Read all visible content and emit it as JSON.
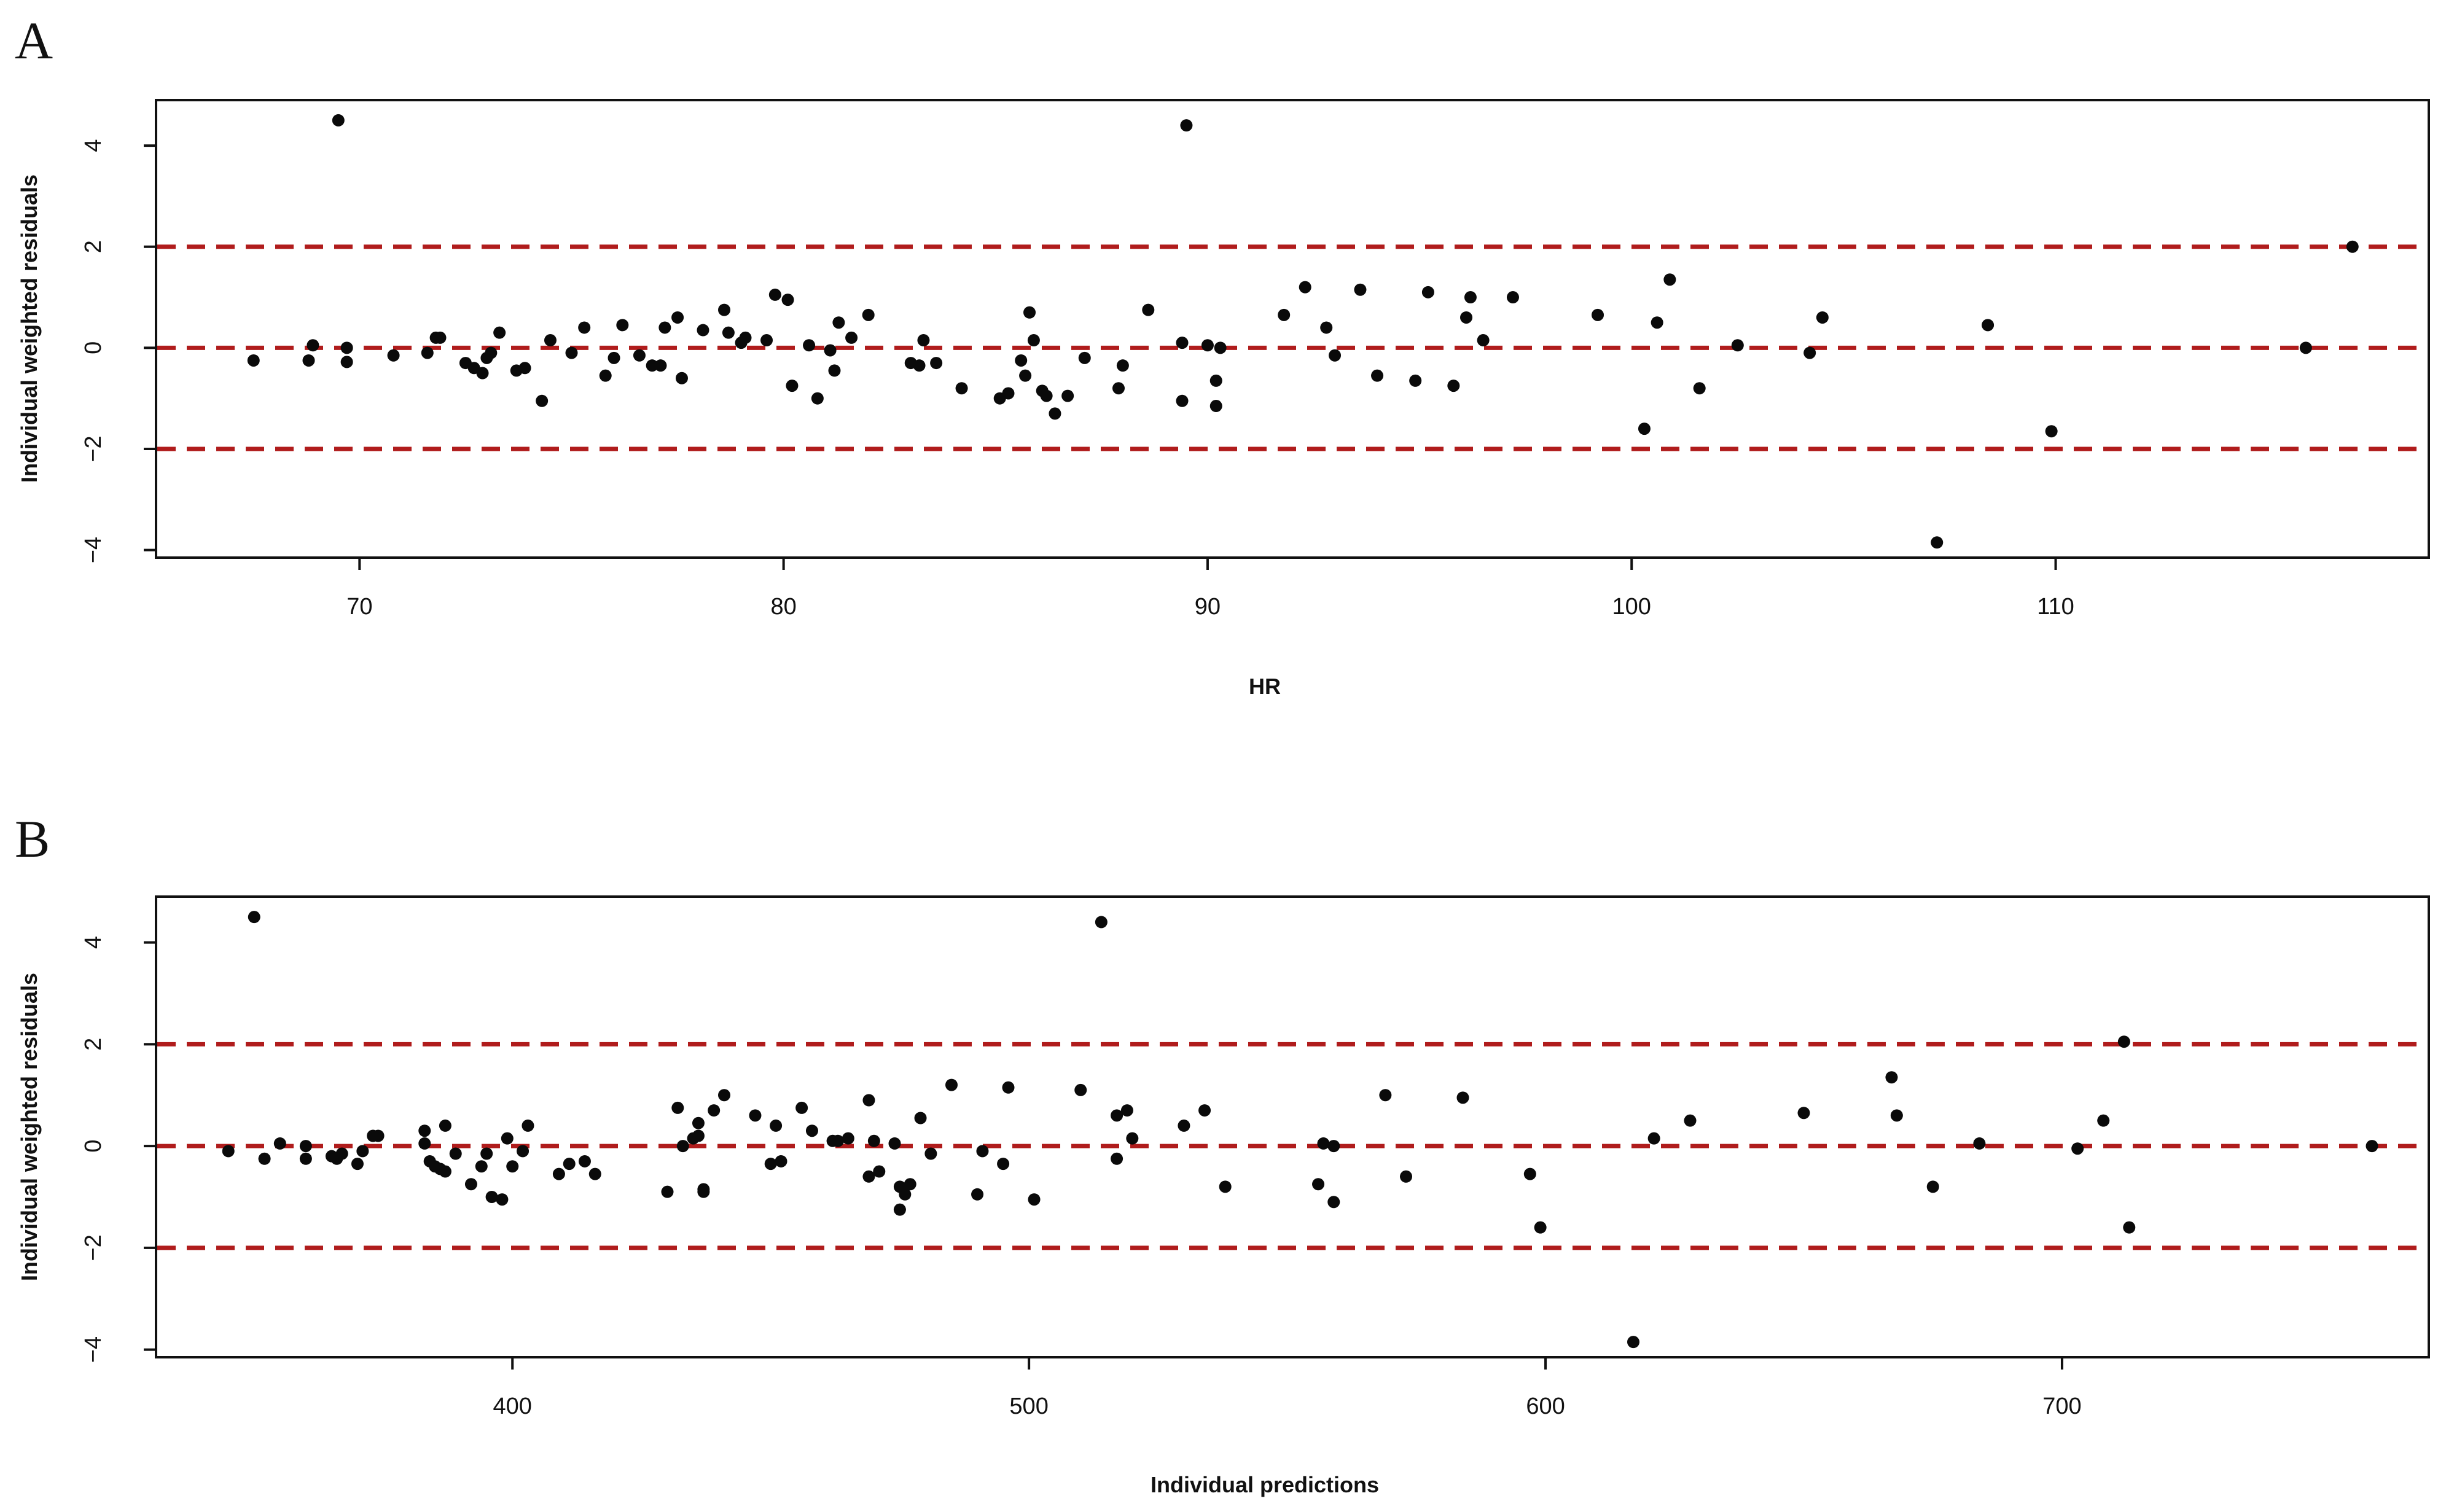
{
  "panels": [
    {
      "letter": "A",
      "xlabel": "HR",
      "ylabel": "Individual weighted residuals"
    },
    {
      "letter": "B",
      "xlabel": "Individual predictions",
      "ylabel": "Individual weighted residuals"
    }
  ],
  "colors": {
    "points": "#0a0a0a",
    "reference_lines": "#b01c1c",
    "axes": "#111111"
  },
  "chart_data": [
    {
      "type": "scatter",
      "title": "",
      "panel_label": "A",
      "xlabel": "HR",
      "ylabel": "Individual weighted residuals",
      "xlim": [
        65.2,
        118.8
      ],
      "ylim": [
        -4.15,
        4.9
      ],
      "xticks": [
        70,
        80,
        90,
        100,
        110
      ],
      "yticks": [
        -4,
        -2,
        0,
        2,
        4
      ],
      "xtick_labels": [
        "70",
        "80",
        "90",
        "100",
        "110"
      ],
      "ytick_labels": [
        "−4",
        "−2",
        "0",
        "2",
        "4"
      ],
      "reference_lines_y": [
        -2,
        0,
        2
      ],
      "reference_line_style": "dashed red",
      "grid": false,
      "points": [
        [
          67.5,
          -0.25
        ],
        [
          68.8,
          -0.25
        ],
        [
          68.9,
          0.05
        ],
        [
          69.5,
          4.5
        ],
        [
          69.7,
          0.0
        ],
        [
          69.7,
          -0.28
        ],
        [
          70.8,
          -0.15
        ],
        [
          71.6,
          -0.1
        ],
        [
          71.8,
          0.2
        ],
        [
          71.9,
          0.2
        ],
        [
          72.5,
          -0.3
        ],
        [
          72.7,
          -0.4
        ],
        [
          72.9,
          -0.5
        ],
        [
          73.0,
          -0.2
        ],
        [
          73.1,
          -0.1
        ],
        [
          73.3,
          0.3
        ],
        [
          73.7,
          -0.45
        ],
        [
          73.9,
          -0.4
        ],
        [
          74.3,
          -1.05
        ],
        [
          74.5,
          0.15
        ],
        [
          75.0,
          -0.1
        ],
        [
          75.3,
          0.4
        ],
        [
          75.8,
          -0.55
        ],
        [
          76.0,
          -0.2
        ],
        [
          76.2,
          0.45
        ],
        [
          76.6,
          -0.15
        ],
        [
          76.9,
          -0.35
        ],
        [
          77.1,
          -0.35
        ],
        [
          77.2,
          0.4
        ],
        [
          77.5,
          0.6
        ],
        [
          77.6,
          -0.6
        ],
        [
          78.1,
          0.35
        ],
        [
          78.6,
          0.75
        ],
        [
          78.7,
          0.3
        ],
        [
          79.0,
          0.1
        ],
        [
          79.1,
          0.2
        ],
        [
          79.6,
          0.15
        ],
        [
          79.8,
          1.05
        ],
        [
          80.1,
          0.95
        ],
        [
          80.2,
          -0.75
        ],
        [
          80.6,
          0.05
        ],
        [
          80.8,
          -1.0
        ],
        [
          81.1,
          -0.05
        ],
        [
          81.2,
          -0.45
        ],
        [
          81.3,
          0.5
        ],
        [
          81.6,
          0.2
        ],
        [
          82.0,
          0.65
        ],
        [
          83.0,
          -0.3
        ],
        [
          83.2,
          -0.35
        ],
        [
          83.3,
          0.15
        ],
        [
          83.6,
          -0.3
        ],
        [
          84.2,
          -0.8
        ],
        [
          85.1,
          -1.0
        ],
        [
          85.3,
          -0.9
        ],
        [
          85.6,
          -0.25
        ],
        [
          85.7,
          -0.55
        ],
        [
          85.8,
          0.7
        ],
        [
          85.9,
          0.15
        ],
        [
          86.1,
          -0.85
        ],
        [
          86.2,
          -0.95
        ],
        [
          86.4,
          -1.3
        ],
        [
          86.7,
          -0.95
        ],
        [
          87.1,
          -0.2
        ],
        [
          87.9,
          -0.8
        ],
        [
          88.0,
          -0.35
        ],
        [
          88.6,
          0.75
        ],
        [
          89.4,
          -1.05
        ],
        [
          89.4,
          0.1
        ],
        [
          89.5,
          4.4
        ],
        [
          90.0,
          0.05
        ],
        [
          90.2,
          -0.65
        ],
        [
          90.2,
          -1.15
        ],
        [
          90.3,
          0.0
        ],
        [
          91.8,
          0.65
        ],
        [
          92.3,
          1.2
        ],
        [
          92.8,
          0.4
        ],
        [
          93.0,
          -0.15
        ],
        [
          93.6,
          1.15
        ],
        [
          94.0,
          -0.55
        ],
        [
          94.9,
          -0.65
        ],
        [
          95.2,
          1.1
        ],
        [
          95.8,
          -0.75
        ],
        [
          96.1,
          0.6
        ],
        [
          96.2,
          1.0
        ],
        [
          96.5,
          0.15
        ],
        [
          97.2,
          1.0
        ],
        [
          99.2,
          0.65
        ],
        [
          100.3,
          -1.6
        ],
        [
          100.6,
          0.5
        ],
        [
          100.9,
          1.35
        ],
        [
          101.6,
          -0.8
        ],
        [
          102.5,
          0.05
        ],
        [
          104.2,
          -0.1
        ],
        [
          104.5,
          0.6
        ],
        [
          107.2,
          -3.85
        ],
        [
          108.4,
          0.45
        ],
        [
          109.9,
          -1.65
        ],
        [
          115.9,
          0.0
        ],
        [
          117.0,
          2.0
        ]
      ]
    },
    {
      "type": "scatter",
      "title": "",
      "panel_label": "B",
      "xlabel": "Individual predictions",
      "ylabel": "Individual weighted residuals",
      "xlim": [
        331,
        771
      ],
      "ylim": [
        -4.15,
        4.9
      ],
      "xticks": [
        400,
        500,
        600,
        700
      ],
      "yticks": [
        -4,
        -2,
        0,
        2,
        4
      ],
      "xtick_labels": [
        "400",
        "500",
        "600",
        "700"
      ],
      "ytick_labels": [
        "−4",
        "−2",
        "0",
        "2",
        "4"
      ],
      "reference_lines_y": [
        -2,
        0,
        2
      ],
      "reference_line_style": "dashed red",
      "grid": false,
      "points": [
        [
          345,
          -0.1
        ],
        [
          350,
          4.5
        ],
        [
          352,
          -0.25
        ],
        [
          355,
          0.05
        ],
        [
          360,
          0.0
        ],
        [
          360,
          -0.25
        ],
        [
          365,
          -0.2
        ],
        [
          366,
          -0.25
        ],
        [
          367,
          -0.15
        ],
        [
          370,
          -0.35
        ],
        [
          371,
          -0.1
        ],
        [
          373,
          0.2
        ],
        [
          374,
          0.2
        ],
        [
          383,
          0.3
        ],
        [
          383,
          0.05
        ],
        [
          384,
          -0.3
        ],
        [
          385,
          -0.4
        ],
        [
          386,
          -0.45
        ],
        [
          387,
          0.4
        ],
        [
          387,
          -0.5
        ],
        [
          389,
          -0.15
        ],
        [
          392,
          -0.75
        ],
        [
          394,
          -0.4
        ],
        [
          395,
          -0.15
        ],
        [
          396,
          -1.0
        ],
        [
          398,
          -1.05
        ],
        [
          399,
          0.15
        ],
        [
          400,
          -0.4
        ],
        [
          402,
          -0.1
        ],
        [
          403,
          0.4
        ],
        [
          409,
          -0.55
        ],
        [
          411,
          -0.35
        ],
        [
          414,
          -0.3
        ],
        [
          416,
          -0.55
        ],
        [
          430,
          -0.9
        ],
        [
          432,
          0.75
        ],
        [
          433,
          0.0
        ],
        [
          435,
          0.15
        ],
        [
          436,
          0.45
        ],
        [
          436,
          0.2
        ],
        [
          437,
          -0.85
        ],
        [
          437,
          -0.9
        ],
        [
          439,
          0.7
        ],
        [
          441,
          1.0
        ],
        [
          447,
          0.6
        ],
        [
          450,
          -0.35
        ],
        [
          451,
          0.4
        ],
        [
          452,
          -0.3
        ],
        [
          456,
          0.75
        ],
        [
          458,
          0.3
        ],
        [
          462,
          0.1
        ],
        [
          463,
          0.1
        ],
        [
          465,
          0.15
        ],
        [
          469,
          -0.6
        ],
        [
          469,
          0.9
        ],
        [
          470,
          0.1
        ],
        [
          471,
          -0.5
        ],
        [
          474,
          0.05
        ],
        [
          475,
          -0.8
        ],
        [
          475,
          -1.25
        ],
        [
          476,
          -0.95
        ],
        [
          477,
          -0.75
        ],
        [
          479,
          0.55
        ],
        [
          481,
          -0.15
        ],
        [
          485,
          1.2
        ],
        [
          490,
          -0.95
        ],
        [
          491,
          -0.1
        ],
        [
          495,
          -0.35
        ],
        [
          496,
          1.15
        ],
        [
          501,
          -1.05
        ],
        [
          510,
          1.1
        ],
        [
          514,
          4.4
        ],
        [
          517,
          0.6
        ],
        [
          517,
          -0.25
        ],
        [
          519,
          0.7
        ],
        [
          520,
          0.15
        ],
        [
          530,
          0.4
        ],
        [
          534,
          0.7
        ],
        [
          538,
          -0.8
        ],
        [
          556,
          -0.75
        ],
        [
          557,
          0.05
        ],
        [
          559,
          -1.1
        ],
        [
          559,
          0.0
        ],
        [
          569,
          1.0
        ],
        [
          573,
          -0.6
        ],
        [
          584,
          0.95
        ],
        [
          597,
          -0.55
        ],
        [
          599,
          -1.6
        ],
        [
          617,
          -3.85
        ],
        [
          621,
          0.15
        ],
        [
          628,
          0.5
        ],
        [
          650,
          0.65
        ],
        [
          667,
          1.35
        ],
        [
          668,
          0.6
        ],
        [
          675,
          -0.8
        ],
        [
          684,
          0.05
        ],
        [
          703,
          -0.05
        ],
        [
          708,
          0.5
        ],
        [
          712,
          2.05
        ],
        [
          713,
          -1.6
        ],
        [
          760,
          0.0
        ]
      ]
    }
  ]
}
